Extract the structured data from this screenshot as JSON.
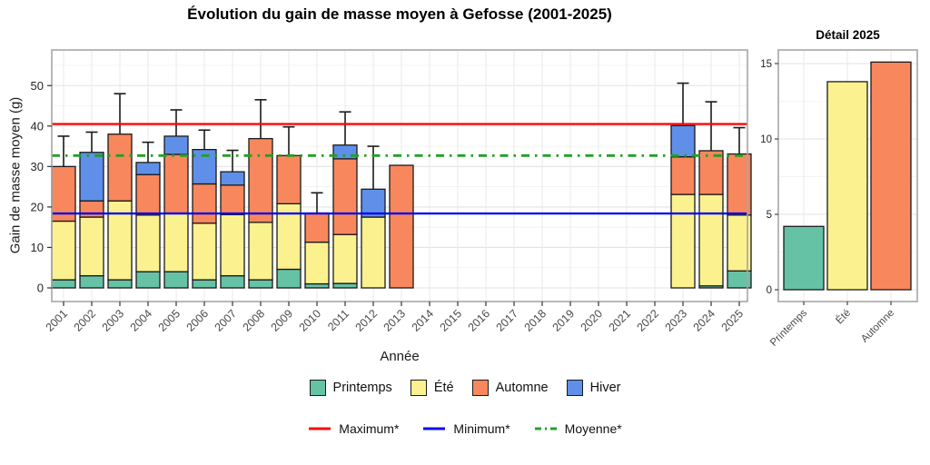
{
  "figure": {
    "title": "Évolution du gain de masse moyen à Gefosse (2001-2025)"
  },
  "chart_data": [
    {
      "type": "bar",
      "stacked": true,
      "title": "Évolution du gain de masse moyen à Gefosse (2001-2025)",
      "xlabel": "Année",
      "ylabel": "Gain de masse moyen (g)",
      "ylim": [
        0,
        58.8
      ],
      "yticks": [
        0,
        10,
        20,
        30,
        40,
        50
      ],
      "grid": true,
      "legend_position": "bottom",
      "categories": [
        "2001",
        "2002",
        "2003",
        "2004",
        "2005",
        "2006",
        "2007",
        "2008",
        "2009",
        "2010",
        "2011",
        "2012",
        "2013",
        "2014",
        "2015",
        "2016",
        "2017",
        "2018",
        "2019",
        "2020",
        "2021",
        "2022",
        "2023",
        "2024",
        "2025"
      ],
      "series": [
        {
          "name": "Printemps",
          "color": "#66C2A5",
          "values": [
            2,
            3,
            2,
            4,
            4,
            2,
            3,
            2,
            4.6,
            1,
            1.1,
            0,
            0,
            0,
            0,
            0,
            0,
            0,
            0,
            0,
            0,
            0,
            0,
            0.5,
            4.2
          ]
        },
        {
          "name": "Été",
          "color": "#FBF18F",
          "values": [
            14.5,
            14.5,
            19.5,
            14,
            14.5,
            14,
            15.1,
            14.2,
            16.2,
            10.3,
            12.1,
            17.5,
            0,
            0,
            0,
            0,
            0,
            0,
            0,
            0,
            0,
            0,
            23.1,
            22.6,
            13.8
          ]
        },
        {
          "name": "Automne",
          "color": "#F8875D",
          "values": [
            13.5,
            4,
            16.5,
            10,
            14.5,
            9.7,
            7.3,
            20.7,
            11.9,
            7.2,
            18.7,
            0,
            30.3,
            0,
            0,
            0,
            0,
            0,
            0,
            0,
            0,
            0,
            9.3,
            10.8,
            15.1
          ]
        },
        {
          "name": "Hiver",
          "color": "#5F8FE8",
          "values": [
            0,
            12,
            0,
            3,
            4.5,
            8.5,
            3.3,
            0,
            0,
            0,
            3.4,
            6.9,
            0,
            0,
            0,
            0,
            0,
            0,
            0,
            0,
            0,
            0,
            7.7,
            0,
            0
          ]
        }
      ],
      "error_bar_tops": [
        37.5,
        38.5,
        48,
        36,
        44,
        39,
        34,
        46.5,
        39.8,
        23.5,
        43.5,
        35,
        null,
        null,
        null,
        null,
        null,
        null,
        null,
        null,
        null,
        null,
        50.6,
        46,
        39.6
      ],
      "reference_lines": [
        {
          "label": "Maximum*",
          "value": 40.5,
          "color": "#F60909",
          "style": "solid"
        },
        {
          "label": "Minimum*",
          "value": 18.4,
          "color": "#0B0BF2",
          "style": "solid"
        },
        {
          "label": "Moyenne*",
          "value": 32.7,
          "color": "#22A122",
          "style": "dashdot"
        }
      ]
    },
    {
      "type": "bar",
      "title": "Détail 2025",
      "categories": [
        "Printemps",
        "Été",
        "Automne"
      ],
      "values": [
        4.2,
        13.8,
        15.1
      ],
      "colors": [
        "#66C2A5",
        "#FBF18F",
        "#F8875D"
      ],
      "ylim": [
        0,
        15.9
      ],
      "yticks": [
        0,
        5,
        10,
        15
      ],
      "grid": true
    }
  ],
  "legend": {
    "seasons": [
      {
        "label": "Printemps",
        "color": "#66C2A5"
      },
      {
        "label": "Été",
        "color": "#FBF18F"
      },
      {
        "label": "Automne",
        "color": "#F8875D"
      },
      {
        "label": "Hiver",
        "color": "#5F8FE8"
      }
    ],
    "lines": [
      {
        "label": "Maximum*",
        "color": "#F60909",
        "style": "solid"
      },
      {
        "label": "Minimum*",
        "color": "#0B0BF2",
        "style": "solid"
      },
      {
        "label": "Moyenne*",
        "color": "#22A122",
        "style": "dashdot"
      }
    ]
  },
  "style": {
    "bar_outline": "#1A1A1A",
    "panel_border": "#A6A6A6",
    "grid_major": "#E3E3E3",
    "grid_minor": "#F0F0F0",
    "grid_vertical": "#E8E8E8",
    "tick_label_color": "#262626",
    "category_label_color": "#4A4A4A"
  }
}
